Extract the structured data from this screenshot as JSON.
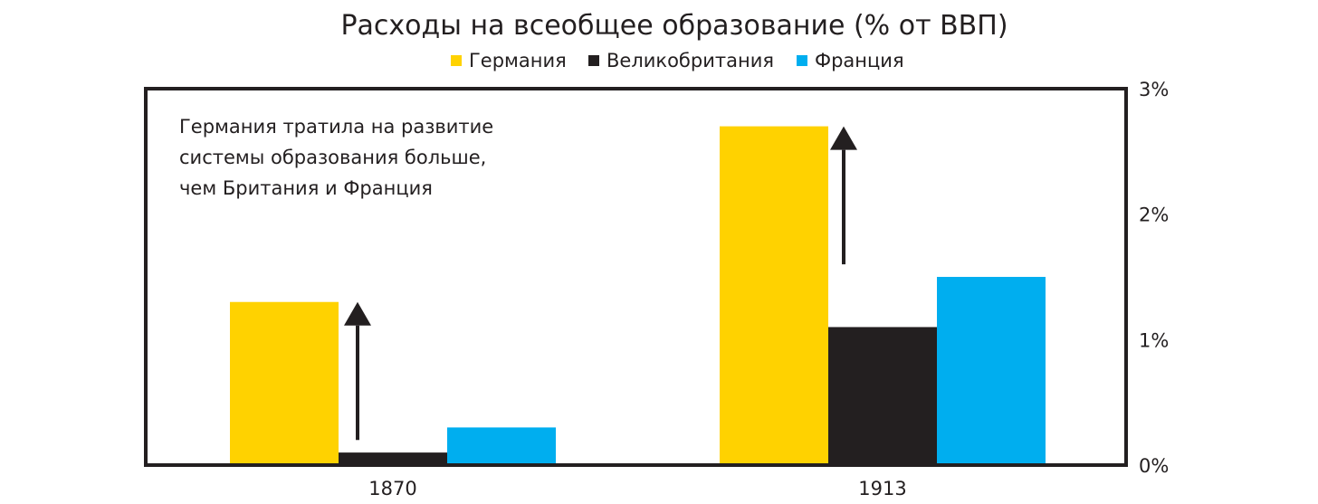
{
  "chart_data": {
    "type": "bar",
    "title": "Расходы на всеобщее образование (% от ВВП)",
    "xlabel": "",
    "ylabel": "",
    "categories": [
      "1870",
      "1913"
    ],
    "series": [
      {
        "name": "Германия",
        "color": "#ffd200",
        "values": [
          1.3,
          2.7
        ]
      },
      {
        "name": "Великобритания",
        "color": "#231f20",
        "values": [
          0.1,
          1.1
        ]
      },
      {
        "name": "Франция",
        "color": "#00aeef",
        "values": [
          0.3,
          1.5
        ]
      }
    ],
    "ylim": [
      0,
      3
    ],
    "yticks": [
      {
        "value": 0,
        "label": "0%"
      },
      {
        "value": 1,
        "label": "1%"
      },
      {
        "value": 2,
        "label": "2%"
      },
      {
        "value": 3,
        "label": "3%"
      }
    ],
    "y_axis_side": "right",
    "legend_position": "top-center",
    "grid": false,
    "annotation": {
      "lines": [
        "Германия тратила на развитие",
        "системы образования больше,",
        "чем Британия и Франция"
      ]
    },
    "arrows": [
      {
        "category": "1870",
        "from": 0.2,
        "to": 1.3
      },
      {
        "category": "1913",
        "from": 1.6,
        "to": 2.7
      }
    ]
  }
}
